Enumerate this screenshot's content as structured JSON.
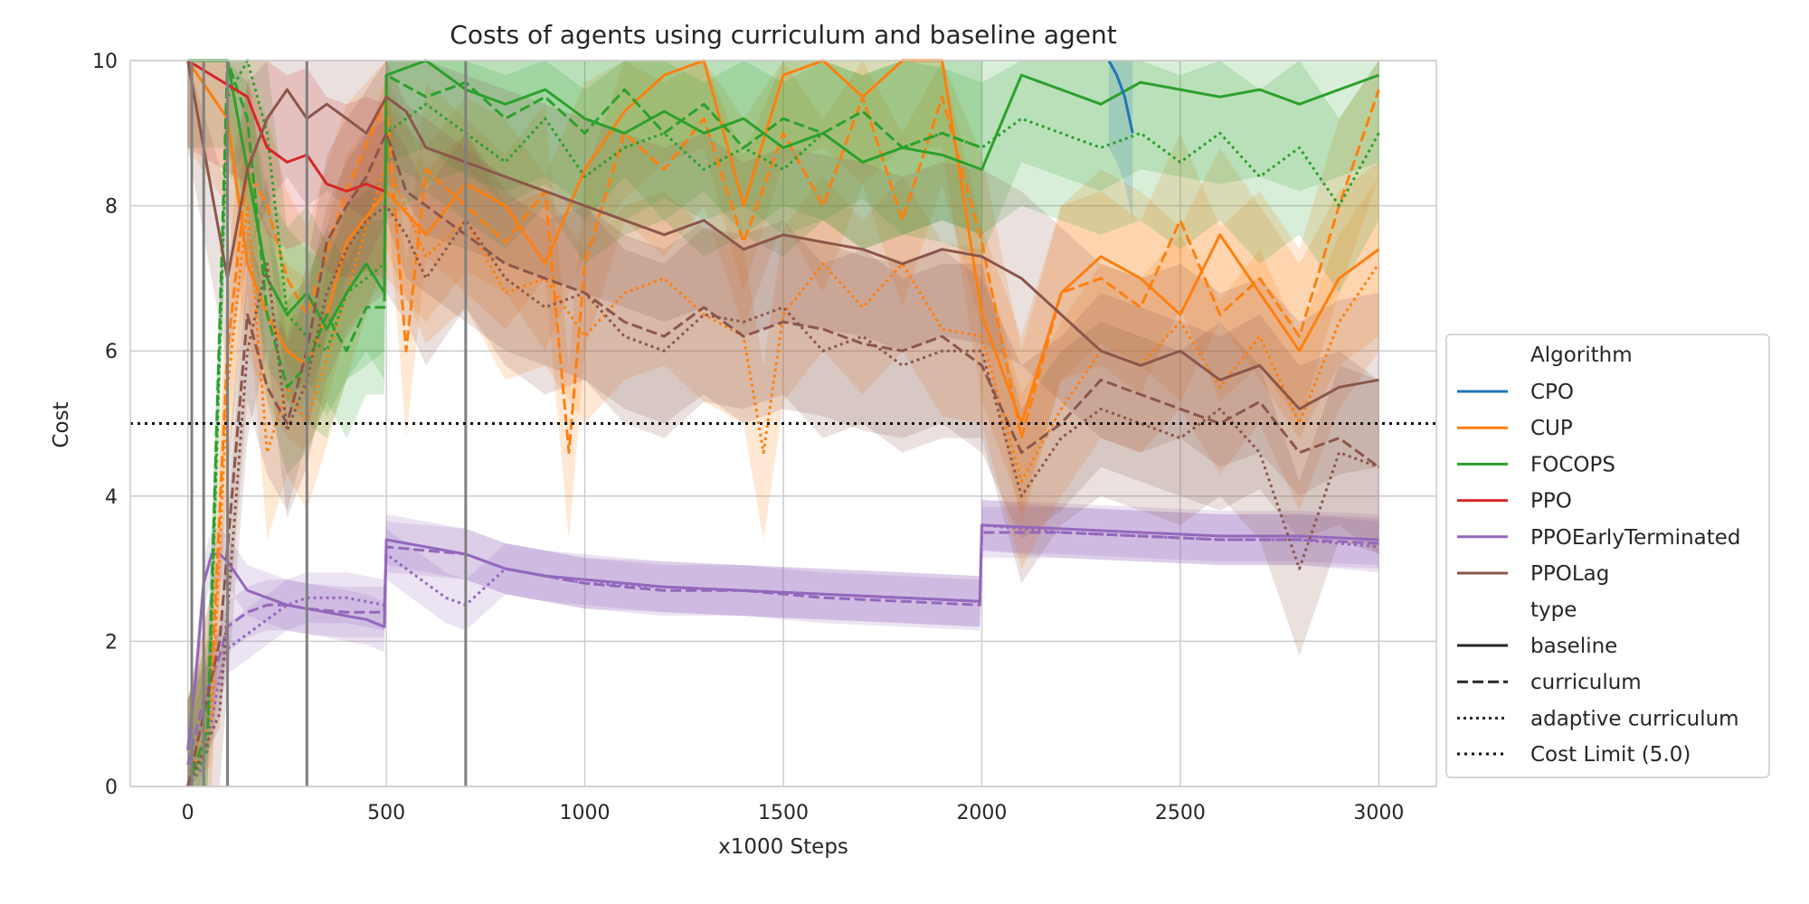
{
  "chart_data": {
    "type": "line",
    "title": "Costs of agents using curriculum and baseline agent",
    "xlabel": "x1000 Steps",
    "ylabel": "Cost",
    "xlim": [
      -145,
      3145
    ],
    "ylim": [
      0,
      10
    ],
    "xticks": [
      0,
      500,
      1000,
      1500,
      2000,
      2500,
      3000
    ],
    "yticks": [
      0,
      2,
      4,
      6,
      8,
      10
    ],
    "grid": true,
    "legend_placement": "right, outside plot area",
    "cost_limit": 5.0,
    "vertical_markers": [
      10,
      40,
      100,
      300,
      700
    ],
    "colors": {
      "CPO": "#1f77b4",
      "CUP": "#ff7f0e",
      "FOCOPS": "#2ca02c",
      "PPO": "#d62728",
      "PPOEarlyTerminated": "#9467bd",
      "PPOLag": "#8c564b",
      "marker": "#808080",
      "limit": "#111111"
    },
    "legend": {
      "algorithm_title": "Algorithm",
      "algorithms": [
        "CPO",
        "CUP",
        "FOCOPS",
        "PPO",
        "PPOEarlyTerminated",
        "PPOLag"
      ],
      "type_title": "type",
      "types": [
        "baseline",
        "curriculum",
        "adaptive curriculum"
      ],
      "limit_label": "Cost Limit (5.0)"
    },
    "series": [
      {
        "algorithm": "PPOEarlyTerminated",
        "type": "baseline",
        "x": [
          0,
          20,
          40,
          60,
          80,
          100,
          150,
          200,
          250,
          300,
          350,
          400,
          450,
          495,
          500,
          600,
          700,
          800,
          900,
          1000,
          1200,
          1400,
          1600,
          1800,
          1995,
          2000,
          2200,
          2400,
          2600,
          2800,
          3000
        ],
        "y": [
          0.5,
          1.5,
          2.8,
          3.2,
          3.2,
          3.1,
          2.7,
          2.6,
          2.5,
          2.45,
          2.4,
          2.35,
          2.3,
          2.2,
          3.4,
          3.3,
          3.2,
          3.0,
          2.9,
          2.85,
          2.75,
          2.7,
          2.65,
          2.6,
          2.55,
          3.6,
          3.55,
          3.5,
          3.45,
          3.45,
          3.4
        ]
      },
      {
        "algorithm": "PPOEarlyTerminated",
        "type": "curriculum",
        "x": [
          0,
          40,
          80,
          100,
          150,
          200,
          250,
          300,
          400,
          495,
          500,
          600,
          700,
          800,
          900,
          1000,
          1200,
          1400,
          1600,
          1800,
          1995,
          2000,
          2200,
          2400,
          2600,
          2800,
          3000
        ],
        "y": [
          0.3,
          1.2,
          1.8,
          2.2,
          2.4,
          2.5,
          2.5,
          2.45,
          2.4,
          2.4,
          3.3,
          3.25,
          3.2,
          3.0,
          2.9,
          2.8,
          2.7,
          2.7,
          2.6,
          2.55,
          2.5,
          3.5,
          3.5,
          3.45,
          3.4,
          3.4,
          3.35
        ]
      },
      {
        "algorithm": "PPOEarlyTerminated",
        "type": "adaptive curriculum",
        "x": [
          0,
          30,
          60,
          80,
          100,
          150,
          200,
          250,
          300,
          400,
          495,
          500,
          550,
          600,
          650,
          700,
          800,
          900,
          1000,
          1200,
          1400,
          1600,
          1800,
          1995,
          2000,
          2200,
          2400,
          2600,
          2800,
          3000
        ],
        "y": [
          0.0,
          0.2,
          0.9,
          1.5,
          1.9,
          2.1,
          2.3,
          2.5,
          2.6,
          2.6,
          2.5,
          3.2,
          3.0,
          2.8,
          2.6,
          2.5,
          3.0,
          2.9,
          2.8,
          2.75,
          2.7,
          2.65,
          2.6,
          2.55,
          3.6,
          3.5,
          3.45,
          3.4,
          3.4,
          3.3
        ]
      },
      {
        "algorithm": "CUP",
        "type": "baseline",
        "x": [
          0,
          100,
          150,
          200,
          250,
          300,
          350,
          400,
          500,
          600,
          700,
          800,
          900,
          1000,
          1100,
          1200,
          1300,
          1400,
          1500,
          1600,
          1700,
          1800,
          1900,
          2000,
          2100,
          2200,
          2300,
          2400,
          2500,
          2600,
          2700,
          2800,
          2900,
          3000
        ],
        "y": [
          10,
          9.2,
          7.2,
          6.5,
          6.0,
          5.8,
          6.5,
          7.5,
          8.2,
          7.6,
          8.3,
          8.0,
          7.2,
          8.5,
          9.3,
          9.8,
          10,
          8.0,
          9.8,
          10,
          9.5,
          10,
          10,
          6.5,
          5.0,
          6.8,
          7.3,
          7.0,
          6.5,
          7.6,
          6.8,
          6.0,
          7.0,
          7.4
        ]
      },
      {
        "algorithm": "CUP",
        "type": "curriculum",
        "x": [
          0,
          60,
          100,
          150,
          200,
          250,
          300,
          400,
          500,
          550,
          600,
          700,
          800,
          900,
          960,
          1000,
          1100,
          1200,
          1300,
          1400,
          1500,
          1600,
          1700,
          1800,
          1900,
          2000,
          2100,
          2200,
          2300,
          2400,
          2500,
          2600,
          2700,
          2800,
          2900,
          3000
        ],
        "y": [
          0.0,
          1.5,
          6.0,
          8.5,
          8.0,
          7.0,
          6.5,
          8.2,
          9.5,
          6.0,
          8.5,
          8.0,
          7.5,
          8.2,
          4.6,
          7.2,
          9.0,
          8.5,
          9.2,
          7.5,
          9.0,
          8.0,
          9.5,
          7.8,
          9.5,
          7.5,
          4.8,
          6.8,
          7.0,
          6.6,
          7.8,
          6.5,
          7.0,
          6.2,
          8.0,
          9.6
        ]
      },
      {
        "algorithm": "CUP",
        "type": "adaptive curriculum",
        "x": [
          0,
          60,
          100,
          150,
          200,
          250,
          300,
          400,
          500,
          600,
          700,
          800,
          900,
          1000,
          1100,
          1200,
          1300,
          1400,
          1450,
          1500,
          1600,
          1700,
          1800,
          1900,
          2000,
          2100,
          2200,
          2300,
          2400,
          2500,
          2600,
          2700,
          2800,
          2900,
          3000
        ],
        "y": [
          0.0,
          1.0,
          5.5,
          8.0,
          4.6,
          5.5,
          5.0,
          6.8,
          8.6,
          7.3,
          7.8,
          6.8,
          7.0,
          6.2,
          6.8,
          7.0,
          6.5,
          6.2,
          4.6,
          6.5,
          7.2,
          6.6,
          7.2,
          6.3,
          6.2,
          4.2,
          5.2,
          6.0,
          5.8,
          6.4,
          5.5,
          6.2,
          5.0,
          6.4,
          7.2
        ]
      },
      {
        "algorithm": "FOCOPS",
        "type": "baseline",
        "x": [
          0,
          50,
          100,
          150,
          200,
          250,
          300,
          350,
          400,
          450,
          495,
          500,
          600,
          700,
          800,
          900,
          1000,
          1100,
          1200,
          1300,
          1400,
          1500,
          1600,
          1700,
          1800,
          1900,
          2000,
          2100,
          2200,
          2300,
          2400,
          2500,
          2600,
          2700,
          2800,
          2900,
          3000
        ],
        "y": [
          10,
          10,
          10,
          8.5,
          7.0,
          6.5,
          6.8,
          6.3,
          6.8,
          7.2,
          6.8,
          9.8,
          10,
          9.6,
          9.4,
          9.6,
          9.2,
          9.0,
          9.3,
          9.0,
          9.2,
          8.8,
          9.0,
          8.6,
          8.8,
          8.7,
          8.5,
          9.8,
          9.6,
          9.4,
          9.7,
          9.6,
          9.5,
          9.6,
          9.4,
          9.6,
          9.8
        ]
      },
      {
        "algorithm": "FOCOPS",
        "type": "curriculum",
        "x": [
          0,
          50,
          100,
          150,
          200,
          250,
          300,
          350,
          400,
          450,
          495,
          500,
          600,
          700,
          800,
          900,
          1000,
          1100,
          1200,
          1300,
          1400,
          1500,
          1600,
          1700,
          1800,
          1900,
          2000
        ],
        "y": [
          0.0,
          0.8,
          10,
          9.2,
          6.5,
          5.5,
          5.8,
          6.5,
          6.0,
          6.6,
          6.6,
          9.8,
          9.5,
          9.7,
          9.2,
          9.5,
          9.0,
          9.6,
          9.0,
          9.4,
          8.8,
          9.2,
          9.0,
          9.3,
          8.8,
          9.0,
          8.8
        ]
      },
      {
        "algorithm": "FOCOPS",
        "type": "adaptive curriculum",
        "x": [
          0,
          50,
          100,
          150,
          200,
          250,
          300,
          350,
          400,
          450,
          495,
          500,
          600,
          700,
          800,
          900,
          1000,
          1100,
          1200,
          1300,
          1400,
          1500,
          1600,
          1700,
          1800,
          1900,
          2000,
          2100,
          2200,
          2300,
          2400,
          2500,
          2600,
          2700,
          2800,
          2900,
          3000
        ],
        "y": [
          0.0,
          0.5,
          9.5,
          10,
          9.0,
          6.5,
          6.2,
          6.0,
          6.8,
          7.0,
          7.2,
          9.0,
          9.4,
          9.0,
          8.6,
          9.2,
          8.4,
          8.8,
          9.0,
          8.5,
          8.8,
          8.5,
          9.0,
          8.6,
          8.8,
          9.0,
          8.8,
          9.2,
          9.0,
          8.8,
          9.0,
          8.6,
          9.0,
          8.4,
          8.8,
          8.0,
          9.0
        ]
      },
      {
        "algorithm": "PPO",
        "type": "baseline",
        "x": [
          0,
          150,
          200,
          250,
          300,
          350,
          400,
          450,
          495
        ],
        "y": [
          10,
          9.5,
          8.8,
          8.6,
          8.7,
          8.3,
          8.2,
          8.3,
          8.2
        ]
      },
      {
        "algorithm": "CPO",
        "type": "baseline",
        "x": [
          2320,
          2340,
          2360,
          2380
        ],
        "y": [
          10,
          9.8,
          9.5,
          9.0
        ]
      },
      {
        "algorithm": "PPOLag",
        "type": "baseline",
        "x": [
          0,
          100,
          150,
          200,
          250,
          300,
          350,
          400,
          450,
          500,
          550,
          600,
          700,
          800,
          900,
          1000,
          1100,
          1200,
          1300,
          1400,
          1500,
          1600,
          1700,
          1800,
          1900,
          2000,
          2100,
          2200,
          2300,
          2400,
          2500,
          2600,
          2700,
          2800,
          2900,
          3000
        ],
        "y": [
          10,
          7.0,
          8.5,
          9.2,
          9.6,
          9.2,
          9.4,
          9.2,
          9.0,
          9.5,
          9.3,
          8.8,
          8.6,
          8.4,
          8.2,
          8.0,
          7.8,
          7.6,
          7.8,
          7.4,
          7.6,
          7.5,
          7.4,
          7.2,
          7.4,
          7.3,
          7.0,
          6.5,
          6.0,
          5.8,
          6.0,
          5.6,
          5.8,
          5.2,
          5.5,
          5.6
        ]
      },
      {
        "algorithm": "PPOLag",
        "type": "curriculum",
        "x": [
          0,
          80,
          150,
          200,
          250,
          300,
          350,
          400,
          450,
          500,
          550,
          600,
          700,
          800,
          900,
          1000,
          1100,
          1200,
          1300,
          1400,
          1500,
          1600,
          1700,
          1800,
          1900,
          2000,
          2100,
          2200,
          2300,
          2400,
          2500,
          2600,
          2700,
          2800,
          2900,
          3000
        ],
        "y": [
          0.0,
          2.0,
          6.5,
          5.5,
          5.0,
          6.0,
          7.5,
          8.0,
          8.4,
          9.0,
          8.2,
          8.0,
          7.6,
          7.2,
          7.0,
          6.8,
          6.4,
          6.2,
          6.6,
          6.2,
          6.4,
          6.3,
          6.1,
          6.0,
          6.2,
          5.8,
          4.6,
          5.0,
          5.6,
          5.4,
          5.2,
          5.0,
          5.3,
          4.6,
          4.8,
          4.4
        ]
      },
      {
        "algorithm": "PPOLag",
        "type": "adaptive curriculum",
        "x": [
          0,
          80,
          150,
          200,
          250,
          300,
          350,
          400,
          450,
          500,
          550,
          600,
          700,
          800,
          900,
          1000,
          1100,
          1200,
          1300,
          1400,
          1500,
          1600,
          1700,
          1800,
          1900,
          2000,
          2100,
          2200,
          2300,
          2400,
          2500,
          2600,
          2700,
          2800,
          2900,
          3000
        ],
        "y": [
          0.0,
          1.0,
          6.0,
          7.2,
          4.9,
          5.6,
          6.8,
          7.4,
          7.8,
          8.0,
          7.6,
          7.0,
          7.8,
          7.0,
          6.6,
          6.8,
          6.2,
          6.0,
          6.5,
          6.4,
          6.6,
          6.0,
          6.2,
          5.8,
          6.0,
          6.0,
          4.0,
          4.8,
          5.2,
          5.0,
          4.8,
          5.2,
          4.6,
          3.0,
          4.6,
          4.4
        ]
      }
    ]
  }
}
